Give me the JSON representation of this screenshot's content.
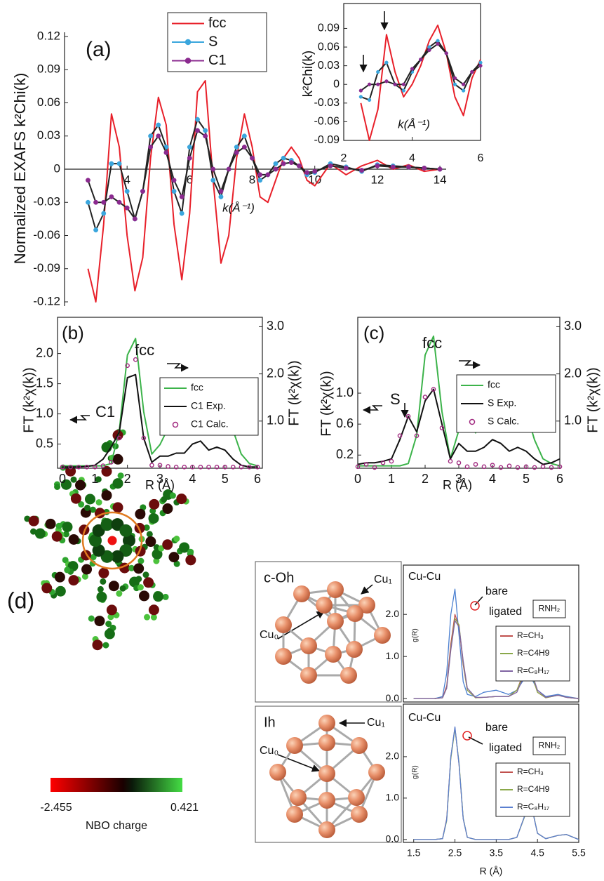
{
  "chart_data": [
    {
      "type": "line",
      "annotations": [
        "(a)"
      ],
      "xlabel": "k(Å⁻¹)",
      "ylabel": "Normalized EXAFS  k²Chi(k)",
      "x": [
        2.75,
        3,
        3.25,
        3.5,
        3.75,
        4,
        4.25,
        4.5,
        4.75,
        5,
        5.25,
        5.5,
        5.75,
        6,
        6.25,
        6.5,
        6.75,
        7,
        7.25,
        7.5,
        7.75,
        8,
        8.25,
        8.5,
        8.75,
        9,
        9.25,
        9.5,
        9.75,
        10,
        10.5,
        11,
        11.5,
        12,
        12.5,
        13,
        13.5,
        14
      ],
      "xlim": [
        2,
        14.2
      ],
      "xticks": [
        4,
        6,
        8,
        10,
        12,
        14
      ],
      "ylim": [
        -0.12,
        0.12
      ],
      "yticks": [
        0.12,
        0.09,
        0.06,
        0.03,
        0,
        -0.03,
        -0.06,
        -0.09,
        -0.12
      ],
      "legend": "upper center",
      "series": [
        {
          "name": "fcc",
          "color": "#e8202a",
          "style": "line",
          "values": [
            -0.09,
            -0.12,
            -0.05,
            0.05,
            0.02,
            -0.06,
            -0.11,
            -0.08,
            0.01,
            0.065,
            0.04,
            -0.05,
            -0.1,
            -0.04,
            0.07,
            0.08,
            -0.01,
            -0.085,
            -0.06,
            0.01,
            0.05,
            0.02,
            -0.025,
            -0.03,
            -0.01,
            0.01,
            0.02,
            0.01,
            -0.01,
            -0.015,
            0.005,
            -0.005,
            0.003,
            0.008,
            0,
            0.004,
            -0.002,
            0
          ]
        },
        {
          "name": "S",
          "color": "#3aa6dd",
          "line_color": "#222222",
          "style": "line+markers",
          "values": [
            -0.03,
            -0.055,
            -0.04,
            0.005,
            0.005,
            -0.02,
            -0.045,
            -0.02,
            0.03,
            0.04,
            0.02,
            -0.02,
            -0.04,
            0.02,
            0.045,
            0.035,
            -0.01,
            -0.025,
            0,
            0.02,
            0.03,
            0.01,
            -0.01,
            -0.005,
            0.005,
            0.01,
            0.008,
            0.003,
            -0.005,
            -0.003,
            0.005,
            0.002,
            -0.002,
            0.004,
            0.003,
            0.002,
            0.001,
            0
          ]
        },
        {
          "name": "C1",
          "color": "#8b2a8f",
          "line_color": "#222222",
          "style": "line+markers",
          "values": [
            -0.01,
            -0.03,
            -0.03,
            -0.025,
            -0.03,
            -0.035,
            -0.045,
            -0.02,
            0.02,
            0.03,
            0.015,
            -0.01,
            -0.025,
            0.01,
            0.035,
            0.03,
            0,
            -0.02,
            0,
            0.015,
            0.02,
            0.01,
            -0.005,
            -0.005,
            0,
            0.005,
            0.006,
            0.003,
            -0.003,
            -0.002,
            0.003,
            0.001,
            -0.001,
            0.003,
            0.002,
            0.002,
            0.001,
            0
          ]
        }
      ]
    },
    {
      "type": "line",
      "xlabel": "k(Å⁻¹)",
      "ylabel": "k²Chi(k)",
      "x": [
        2.5,
        2.75,
        3,
        3.25,
        3.5,
        3.75,
        4,
        4.25,
        4.5,
        4.75,
        5,
        5.25,
        5.5,
        5.75,
        6
      ],
      "xlim": [
        2,
        6
      ],
      "xticks": [
        2,
        4,
        6
      ],
      "ylim": [
        -0.09,
        0.13
      ],
      "yticks": [
        0.09,
        0.06,
        0.03,
        0,
        -0.03,
        -0.06,
        -0.09
      ],
      "series": [
        {
          "color": "#e8202a",
          "style": "line",
          "values": [
            -0.03,
            -0.09,
            -0.04,
            0.08,
            0.02,
            -0.02,
            0,
            0.03,
            0.07,
            0.095,
            0.05,
            -0.02,
            -0.05,
            0.01,
            0.04
          ]
        },
        {
          "color": "#3aa6dd",
          "line_color": "#222222",
          "style": "line+markers",
          "values": [
            -0.02,
            -0.025,
            0.02,
            0.035,
            0,
            -0.01,
            0.02,
            0.04,
            0.06,
            0.07,
            0.05,
            0,
            -0.01,
            0.02,
            0.035
          ]
        },
        {
          "color": "#8b2a8f",
          "line_color": "#222222",
          "style": "line+markers",
          "values": [
            -0.01,
            0,
            0,
            0.005,
            0,
            0,
            0.025,
            0.04,
            0.055,
            0.065,
            0.05,
            0.01,
            0,
            0.02,
            0.03
          ]
        }
      ]
    },
    {
      "type": "line",
      "annotations": [
        "(b)",
        "C1",
        "fcc"
      ],
      "xlabel": "R (Å)",
      "ylabel": "FT (k²χ(k))",
      "y2label": "FT (k²χ(k))",
      "x": [
        0,
        0.25,
        0.5,
        0.75,
        1,
        1.25,
        1.5,
        1.75,
        2,
        2.25,
        2.5,
        2.75,
        3,
        3.25,
        3.5,
        3.75,
        4,
        4.25,
        4.5,
        4.75,
        5,
        5.25,
        5.5,
        5.75,
        6
      ],
      "xlim": [
        -0.15,
        6.15
      ],
      "xticks": [
        0,
        1,
        2,
        3,
        4,
        5,
        6
      ],
      "ylim": [
        0.1,
        2.6
      ],
      "yticks": [
        0.5,
        {
          "value": 1,
          "label": "1.0"
        },
        1.5,
        {
          "value": 2,
          "label": "2.0"
        }
      ],
      "y2lim": [
        0,
        3.2
      ],
      "y2ticks": [
        {
          "value": 1,
          "label": "1.0"
        },
        {
          "value": 2,
          "label": "2.0"
        },
        {
          "value": 3,
          "label": "3.0"
        }
      ],
      "legend": "right",
      "series": [
        {
          "name": "fcc",
          "color": "#3cb34a",
          "axis": "y2",
          "style": "line",
          "values": [
            0.05,
            0.05,
            0.05,
            0.05,
            0.05,
            0.05,
            0.1,
            0.8,
            2.4,
            2.75,
            1.2,
            0.3,
            0.5,
            0.85,
            0.75,
            1,
            1.5,
            1.6,
            1.15,
            1.3,
            1.35,
            0.8,
            0.3,
            0.1,
            0.05
          ]
        },
        {
          "name": "C1 Exp.",
          "color": "#111111",
          "style": "line",
          "values": [
            0.12,
            0.12,
            0.12,
            0.13,
            0.15,
            0.25,
            0.45,
            0.7,
            1.6,
            1.65,
            0.6,
            0.2,
            0.3,
            0.3,
            0.35,
            0.35,
            0.5,
            0.55,
            0.4,
            0.45,
            0.4,
            0.25,
            0.15,
            0.12,
            0.12
          ]
        },
        {
          "name": "C1 Calc.",
          "color": "#a0287f",
          "style": "markers",
          "values": [
            0.12,
            0.12,
            0.12,
            0.12,
            0.12,
            0.14,
            0.2,
            0.6,
            1.8,
            1.9,
            0.6,
            0.15,
            0.15,
            0.13,
            0.12,
            0.12,
            0.12,
            0.12,
            0.12,
            0.12,
            0.12,
            0.12,
            0.12,
            0.12,
            0.12
          ]
        }
      ]
    },
    {
      "type": "line",
      "annotations": [
        "(c)",
        "S",
        "fcc"
      ],
      "xlabel": "R (Å)",
      "ylabel": "FT (k²χ(k))",
      "y2label": "FT (k²χ(k))",
      "x": [
        0,
        0.25,
        0.5,
        0.75,
        1,
        1.25,
        1.5,
        1.75,
        2,
        2.25,
        2.5,
        2.75,
        3,
        3.25,
        3.5,
        3.75,
        4,
        4.25,
        4.5,
        4.75,
        5,
        5.25,
        5.5,
        5.75,
        6
      ],
      "xlim": [
        0,
        6
      ],
      "xticks": [
        0,
        1,
        2,
        3,
        4,
        5,
        6
      ],
      "ylim": [
        0.03,
        1.98
      ],
      "yticks": [
        0.2,
        0.6,
        {
          "value": 1,
          "label": "1.0"
        }
      ],
      "y2lim": [
        0,
        3.2
      ],
      "y2ticks": [
        {
          "value": 1,
          "label": "1.0"
        },
        {
          "value": 2,
          "label": "2.0"
        },
        {
          "value": 3,
          "label": "3.0"
        }
      ],
      "legend": "right",
      "series": [
        {
          "name": "fcc",
          "color": "#3cb34a",
          "axis": "y2",
          "style": "line",
          "values": [
            0.05,
            0.05,
            0.05,
            0.05,
            0.05,
            0.05,
            0.1,
            0.7,
            2.4,
            2.8,
            1.2,
            0.2,
            0.8,
            1,
            0.75,
            1.1,
            1.7,
            1.5,
            1.2,
            1.43,
            1.2,
            0.6,
            0.2,
            0.1,
            0.05
          ]
        },
        {
          "name": "S Exp.",
          "color": "#111111",
          "style": "line",
          "values": [
            0.08,
            0.1,
            0.1,
            0.12,
            0.15,
            0.4,
            0.7,
            0.5,
            0.9,
            1.05,
            0.6,
            0.15,
            0.35,
            0.25,
            0.25,
            0.3,
            0.4,
            0.35,
            0.25,
            0.3,
            0.25,
            0.15,
            0.08,
            0.1,
            0.15
          ]
        },
        {
          "name": "S Calc.",
          "color": "#a0287f",
          "style": "markers",
          "values": [
            0.05,
            0.08,
            0.04,
            0.1,
            0.12,
            0.45,
            0.7,
            0.45,
            0.95,
            1.05,
            0.55,
            0.12,
            0.1,
            0.05,
            0.08,
            0.05,
            0.07,
            0.04,
            0.06,
            0.04,
            0.05,
            0.04,
            0.05,
            0.04,
            0.05
          ]
        }
      ]
    },
    {
      "type": "line",
      "title": "Cu-Cu",
      "annotations": [
        "bare",
        "ligated"
      ],
      "legend_title": "RNH₂",
      "ylabel": "g(R)",
      "x": [
        1.5,
        2,
        2.2,
        2.3,
        2.4,
        2.5,
        2.6,
        2.7,
        2.8,
        3,
        3.2,
        3.5,
        3.8,
        4,
        4.2,
        4.3,
        4.4,
        4.5,
        4.7,
        5,
        5.2,
        5.5
      ],
      "xlim": [
        1.25,
        5.5
      ],
      "ylim": [
        -0.08,
        3.17
      ],
      "yticks": [
        {
          "value": 0,
          "label": "0.0"
        },
        {
          "value": 1,
          "label": "1.0"
        },
        {
          "value": 2,
          "label": "2.0"
        }
      ],
      "legend": "right",
      "series": [
        {
          "color": "#4a7fd0",
          "style": "line",
          "values": [
            0,
            0,
            0.05,
            0.6,
            2,
            2.6,
            1.5,
            0.4,
            0.1,
            0.05,
            0.15,
            0.2,
            0.1,
            0.2,
            0.5,
            0.55,
            0.4,
            0.2,
            0.05,
            0.1,
            0.05,
            0
          ]
        },
        {
          "name": "R=CH₃",
          "color": "#c0504d",
          "style": "line",
          "values": [
            0,
            0,
            0.02,
            0.3,
            1.3,
            2,
            1.7,
            0.8,
            0.2,
            0.02,
            0.03,
            0.05,
            0.05,
            0.2,
            0.7,
            0.75,
            0.45,
            0.15,
            0.02,
            0.08,
            0.03,
            0
          ]
        },
        {
          "name": "R=C4H9",
          "color": "#8aa84a",
          "style": "line",
          "values": [
            0,
            0,
            0.02,
            0.25,
            1.2,
            1.9,
            1.75,
            0.85,
            0.2,
            0.02,
            0.03,
            0.05,
            0.05,
            0.2,
            0.65,
            0.7,
            0.45,
            0.15,
            0.02,
            0.08,
            0.03,
            0
          ]
        },
        {
          "name": "R=C₈H₁₇",
          "color": "#8064a2",
          "style": "line",
          "values": [
            0,
            0,
            0.02,
            0.25,
            1.15,
            1.85,
            1.7,
            0.9,
            0.25,
            0.03,
            0.03,
            0.05,
            0.05,
            0.15,
            0.6,
            0.7,
            0.5,
            0.2,
            0.03,
            0.08,
            0.03,
            0
          ]
        }
      ]
    },
    {
      "type": "line",
      "title": "Cu-Cu",
      "annotations": [
        "bare",
        "ligated"
      ],
      "legend_title": "RNH₂",
      "ylabel": "g(R)",
      "xlabel": "R (Å)",
      "x": [
        1.5,
        2,
        2.2,
        2.3,
        2.4,
        2.5,
        2.6,
        2.7,
        2.8,
        3,
        3.2,
        3.5,
        3.8,
        4,
        4.2,
        4.3,
        4.4,
        4.5,
        4.7,
        5,
        5.2,
        5.5
      ],
      "xlim": [
        1.25,
        5.5
      ],
      "xticks": [
        1.5,
        2.5,
        3.5,
        4.5,
        5.5
      ],
      "ylim": [
        -0.07,
        3.27
      ],
      "yticks": [
        {
          "value": 0,
          "label": "0.0"
        },
        {
          "value": 1,
          "label": "1.0"
        },
        {
          "value": 2,
          "label": "2.0"
        }
      ],
      "legend": "right",
      "series": [
        {
          "name": "R=CH₃",
          "color": "#c0504d",
          "style": "line",
          "values": [
            0,
            0,
            0.02,
            0.5,
            2,
            2.7,
            1.8,
            0.5,
            0.05,
            0,
            0,
            0,
            0,
            0.05,
            0.6,
            0.9,
            0.6,
            0.15,
            0.02,
            0.1,
            0.12,
            0
          ]
        },
        {
          "name": "R=C4H9",
          "color": "#8aa84a",
          "style": "line",
          "values": [
            0,
            0,
            0.02,
            0.45,
            1.95,
            2.68,
            1.85,
            0.52,
            0.05,
            0,
            0,
            0,
            0,
            0.05,
            0.58,
            0.88,
            0.62,
            0.15,
            0.02,
            0.1,
            0.12,
            0
          ]
        },
        {
          "name": "R=C₈H₁₇",
          "color": "#5a7fd0",
          "style": "line",
          "values": [
            0,
            0,
            0.02,
            0.48,
            2,
            2.72,
            1.8,
            0.5,
            0.05,
            0,
            0,
            0,
            0,
            0.05,
            0.6,
            0.92,
            0.6,
            0.15,
            0.02,
            0.1,
            0.12,
            0
          ]
        }
      ]
    }
  ],
  "panel_d": {
    "label": "(d)",
    "colorbar": {
      "min": -2.455,
      "max": 0.421,
      "label": "NBO charge"
    }
  },
  "structures": [
    {
      "label": "c-Oh",
      "atoms": [
        "Cu₁",
        "Cu₀"
      ]
    },
    {
      "label": "Ih",
      "atoms": [
        "Cu₁",
        "Cu₀"
      ]
    }
  ]
}
